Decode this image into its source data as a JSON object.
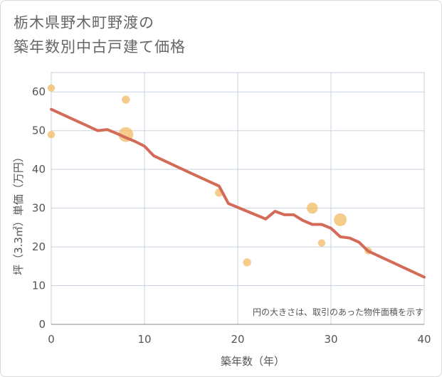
{
  "title_line1": "栃木県野木町野渡の",
  "title_line2": "築年数別中古戸建て価格",
  "chart_data": {
    "type": "scatter",
    "xlabel": "築年数（年）",
    "ylabel": "坪（3.3㎡）単価（万円）",
    "xlim": [
      0,
      40
    ],
    "ylim": [
      0,
      65
    ],
    "xticks": [
      0,
      10,
      20,
      30,
      40
    ],
    "yticks": [
      0,
      10,
      20,
      30,
      40,
      50,
      60
    ],
    "grid": true,
    "annotation": "円の大きさは、取引のあった物件面積を示す",
    "colors": {
      "points": "#f2bb62",
      "line": "#d46a58",
      "grid": "#c8d3df"
    },
    "points": [
      {
        "x": 0,
        "y": 61,
        "size": 1
      },
      {
        "x": 0,
        "y": 49,
        "size": 1
      },
      {
        "x": 8,
        "y": 58,
        "size": 1.2
      },
      {
        "x": 8,
        "y": 49,
        "size": 4
      },
      {
        "x": 18,
        "y": 34,
        "size": 1.2
      },
      {
        "x": 21,
        "y": 16,
        "size": 1.2
      },
      {
        "x": 28,
        "y": 30,
        "size": 2.2
      },
      {
        "x": 29,
        "y": 21,
        "size": 1
      },
      {
        "x": 31,
        "y": 27,
        "size": 3
      },
      {
        "x": 34,
        "y": 19,
        "size": 1
      }
    ],
    "trend": {
      "x": [
        0,
        5,
        6,
        7,
        8,
        9,
        10,
        11,
        15,
        18,
        19,
        20,
        21,
        22,
        23,
        24,
        25,
        26,
        27,
        28,
        29,
        30,
        31,
        32,
        33,
        34,
        40
      ],
      "y": [
        55.5,
        50,
        50.3,
        49.3,
        48.2,
        47.2,
        46,
        43.5,
        39,
        35.7,
        31.2,
        30.2,
        29.2,
        28.2,
        27.2,
        29.2,
        28.3,
        28.3,
        26.8,
        25.8,
        25.8,
        24.8,
        22.6,
        22.3,
        21.2,
        18.9,
        12.2
      ]
    }
  }
}
